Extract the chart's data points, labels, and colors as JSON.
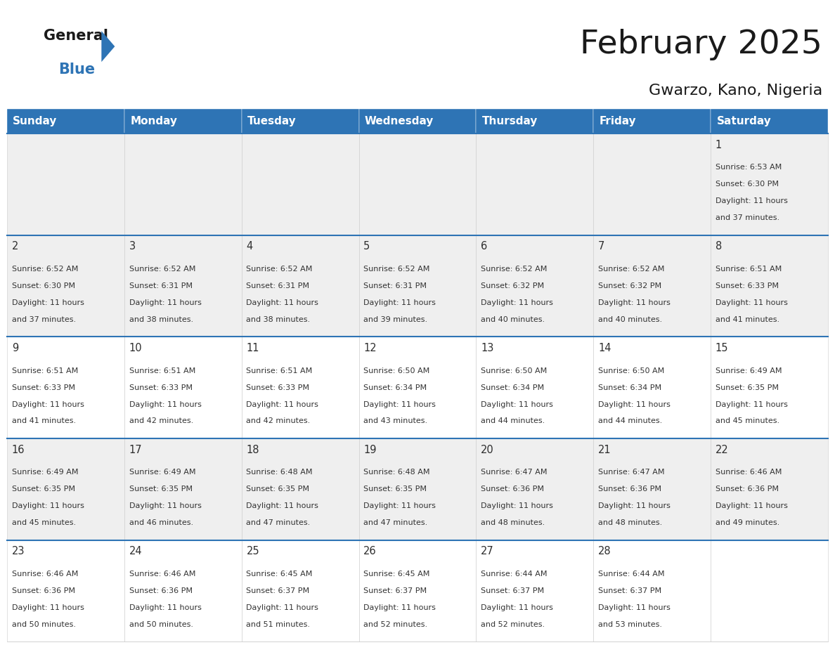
{
  "title": "February 2025",
  "subtitle": "Gwarzo, Kano, Nigeria",
  "header_bg": "#2E74B5",
  "header_text_color": "#FFFFFF",
  "cell_bg_row0": "#EFEFEF",
  "cell_bg_row1": "#EFEFEF",
  "cell_bg_row2": "#FFFFFF",
  "cell_bg_row3": "#EFEFEF",
  "cell_bg_row4": "#FFFFFF",
  "row_bg_colors": [
    "#EFEFEF",
    "#EFEFEF",
    "#FFFFFF",
    "#EFEFEF",
    "#FFFFFF"
  ],
  "header_row": [
    "Sunday",
    "Monday",
    "Tuesday",
    "Wednesday",
    "Thursday",
    "Friday",
    "Saturday"
  ],
  "days": [
    {
      "day": 1,
      "col": 6,
      "row": 0,
      "sunrise": "6:53 AM",
      "sunset": "6:30 PM",
      "daylight_h": "11 hours",
      "daylight_m": "37 minutes"
    },
    {
      "day": 2,
      "col": 0,
      "row": 1,
      "sunrise": "6:52 AM",
      "sunset": "6:30 PM",
      "daylight_h": "11 hours",
      "daylight_m": "37 minutes"
    },
    {
      "day": 3,
      "col": 1,
      "row": 1,
      "sunrise": "6:52 AM",
      "sunset": "6:31 PM",
      "daylight_h": "11 hours",
      "daylight_m": "38 minutes"
    },
    {
      "day": 4,
      "col": 2,
      "row": 1,
      "sunrise": "6:52 AM",
      "sunset": "6:31 PM",
      "daylight_h": "11 hours",
      "daylight_m": "38 minutes"
    },
    {
      "day": 5,
      "col": 3,
      "row": 1,
      "sunrise": "6:52 AM",
      "sunset": "6:31 PM",
      "daylight_h": "11 hours",
      "daylight_m": "39 minutes"
    },
    {
      "day": 6,
      "col": 4,
      "row": 1,
      "sunrise": "6:52 AM",
      "sunset": "6:32 PM",
      "daylight_h": "11 hours",
      "daylight_m": "40 minutes"
    },
    {
      "day": 7,
      "col": 5,
      "row": 1,
      "sunrise": "6:52 AM",
      "sunset": "6:32 PM",
      "daylight_h": "11 hours",
      "daylight_m": "40 minutes"
    },
    {
      "day": 8,
      "col": 6,
      "row": 1,
      "sunrise": "6:51 AM",
      "sunset": "6:33 PM",
      "daylight_h": "11 hours",
      "daylight_m": "41 minutes"
    },
    {
      "day": 9,
      "col": 0,
      "row": 2,
      "sunrise": "6:51 AM",
      "sunset": "6:33 PM",
      "daylight_h": "11 hours",
      "daylight_m": "41 minutes"
    },
    {
      "day": 10,
      "col": 1,
      "row": 2,
      "sunrise": "6:51 AM",
      "sunset": "6:33 PM",
      "daylight_h": "11 hours",
      "daylight_m": "42 minutes"
    },
    {
      "day": 11,
      "col": 2,
      "row": 2,
      "sunrise": "6:51 AM",
      "sunset": "6:33 PM",
      "daylight_h": "11 hours",
      "daylight_m": "42 minutes"
    },
    {
      "day": 12,
      "col": 3,
      "row": 2,
      "sunrise": "6:50 AM",
      "sunset": "6:34 PM",
      "daylight_h": "11 hours",
      "daylight_m": "43 minutes"
    },
    {
      "day": 13,
      "col": 4,
      "row": 2,
      "sunrise": "6:50 AM",
      "sunset": "6:34 PM",
      "daylight_h": "11 hours",
      "daylight_m": "44 minutes"
    },
    {
      "day": 14,
      "col": 5,
      "row": 2,
      "sunrise": "6:50 AM",
      "sunset": "6:34 PM",
      "daylight_h": "11 hours",
      "daylight_m": "44 minutes"
    },
    {
      "day": 15,
      "col": 6,
      "row": 2,
      "sunrise": "6:49 AM",
      "sunset": "6:35 PM",
      "daylight_h": "11 hours",
      "daylight_m": "45 minutes"
    },
    {
      "day": 16,
      "col": 0,
      "row": 3,
      "sunrise": "6:49 AM",
      "sunset": "6:35 PM",
      "daylight_h": "11 hours",
      "daylight_m": "45 minutes"
    },
    {
      "day": 17,
      "col": 1,
      "row": 3,
      "sunrise": "6:49 AM",
      "sunset": "6:35 PM",
      "daylight_h": "11 hours",
      "daylight_m": "46 minutes"
    },
    {
      "day": 18,
      "col": 2,
      "row": 3,
      "sunrise": "6:48 AM",
      "sunset": "6:35 PM",
      "daylight_h": "11 hours",
      "daylight_m": "47 minutes"
    },
    {
      "day": 19,
      "col": 3,
      "row": 3,
      "sunrise": "6:48 AM",
      "sunset": "6:35 PM",
      "daylight_h": "11 hours",
      "daylight_m": "47 minutes"
    },
    {
      "day": 20,
      "col": 4,
      "row": 3,
      "sunrise": "6:47 AM",
      "sunset": "6:36 PM",
      "daylight_h": "11 hours",
      "daylight_m": "48 minutes"
    },
    {
      "day": 21,
      "col": 5,
      "row": 3,
      "sunrise": "6:47 AM",
      "sunset": "6:36 PM",
      "daylight_h": "11 hours",
      "daylight_m": "48 minutes"
    },
    {
      "day": 22,
      "col": 6,
      "row": 3,
      "sunrise": "6:46 AM",
      "sunset": "6:36 PM",
      "daylight_h": "11 hours",
      "daylight_m": "49 minutes"
    },
    {
      "day": 23,
      "col": 0,
      "row": 4,
      "sunrise": "6:46 AM",
      "sunset": "6:36 PM",
      "daylight_h": "11 hours",
      "daylight_m": "50 minutes"
    },
    {
      "day": 24,
      "col": 1,
      "row": 4,
      "sunrise": "6:46 AM",
      "sunset": "6:36 PM",
      "daylight_h": "11 hours",
      "daylight_m": "50 minutes"
    },
    {
      "day": 25,
      "col": 2,
      "row": 4,
      "sunrise": "6:45 AM",
      "sunset": "6:37 PM",
      "daylight_h": "11 hours",
      "daylight_m": "51 minutes"
    },
    {
      "day": 26,
      "col": 3,
      "row": 4,
      "sunrise": "6:45 AM",
      "sunset": "6:37 PM",
      "daylight_h": "11 hours",
      "daylight_m": "52 minutes"
    },
    {
      "day": 27,
      "col": 4,
      "row": 4,
      "sunrise": "6:44 AM",
      "sunset": "6:37 PM",
      "daylight_h": "11 hours",
      "daylight_m": "52 minutes"
    },
    {
      "day": 28,
      "col": 5,
      "row": 4,
      "sunrise": "6:44 AM",
      "sunset": "6:37 PM",
      "daylight_h": "11 hours",
      "daylight_m": "53 minutes"
    }
  ],
  "num_rows": 5,
  "logo_general_color": "#1a1a1a",
  "logo_blue_color": "#2E74B5",
  "title_fontsize": 34,
  "subtitle_fontsize": 16,
  "day_number_fontsize": 10.5,
  "cell_text_fontsize": 8.0,
  "header_fontsize": 11,
  "day_number_color": "#2E2E2E",
  "cell_text_color": "#333333",
  "row_border_color": "#2E74B5",
  "cell_border_color": "#CCCCCC"
}
